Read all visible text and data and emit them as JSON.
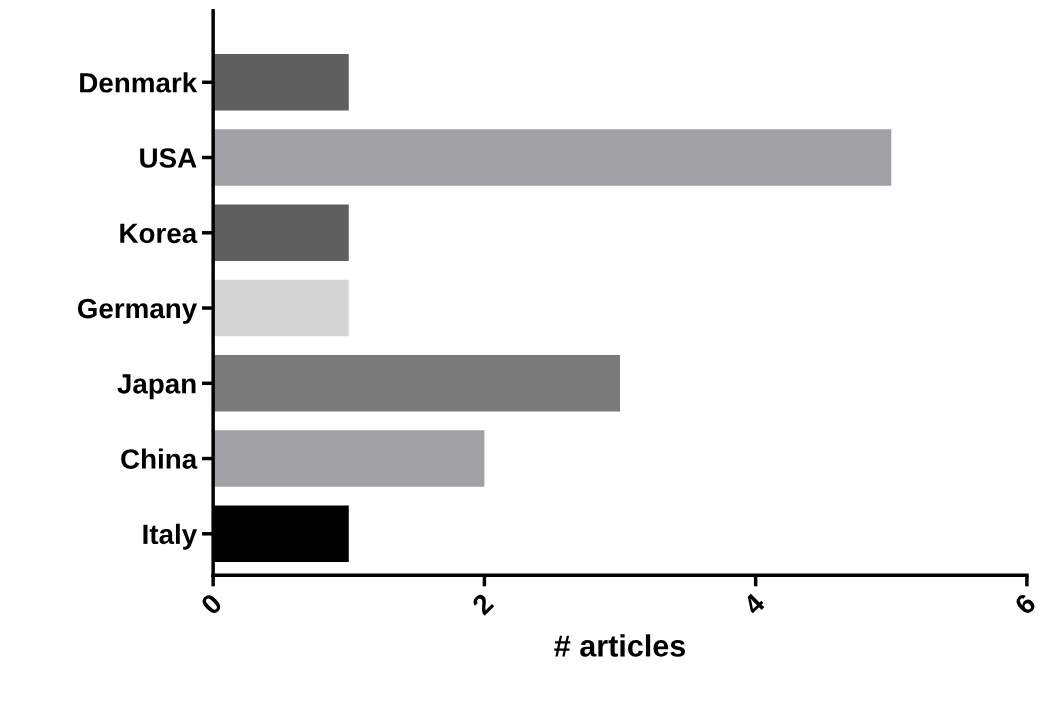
{
  "chart_data": {
    "type": "bar",
    "orientation": "horizontal",
    "xlabel": "# articles",
    "categories": [
      "Denmark",
      "USA",
      "Korea",
      "Germany",
      "Japan",
      "China",
      "Italy"
    ],
    "values": [
      1,
      5,
      1,
      1,
      3,
      2,
      1
    ],
    "colors": [
      "#5f5f5f",
      "#a0a0a5",
      "#5f5f5f",
      "#d6d6d6",
      "#7a7a7a",
      "#a0a0a5",
      "#000000"
    ],
    "xlim": [
      0,
      6
    ],
    "xticks": [
      0,
      2,
      4,
      6
    ],
    "grid": false
  }
}
